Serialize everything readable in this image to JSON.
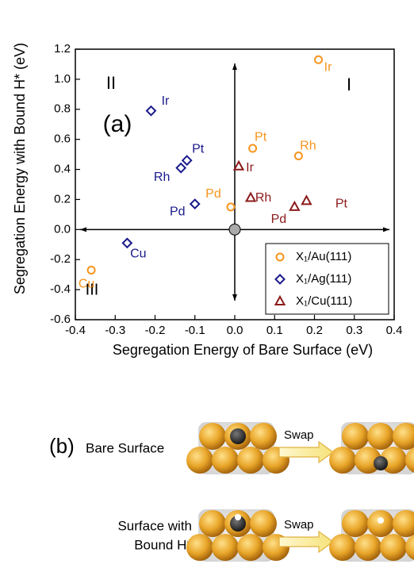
{
  "chart_data": {
    "type": "scatter",
    "x_label": "Segregation Energy of Bare Surface (eV)",
    "y_label": "Segregation Energy with Bound H* (eV)",
    "annotations": [
      "(a)",
      "I",
      "II",
      "III"
    ],
    "xlim": [
      -0.4,
      0.4
    ],
    "xticks": [
      -0.4,
      -0.3,
      -0.2,
      -0.1,
      {
        "value": 0,
        "label": "0.0"
      },
      0.1,
      0.2,
      0.3,
      0.4
    ],
    "ylim": [
      -0.6,
      1.2
    ],
    "yticks": [
      -0.6,
      -0.4,
      -0.2,
      {
        "value": 0,
        "label": "0.0"
      },
      0.2,
      0.4,
      0.6,
      0.8,
      {
        "value": 1,
        "label": "1.0"
      },
      1.2
    ],
    "legend": "bottom-right",
    "series": [
      {
        "name": "X₁/Au(111)",
        "color": "#f7941d",
        "marker": "circle",
        "labels": [
          "Ir",
          "Pt",
          "Rh",
          "Pd",
          "Cu"
        ],
        "x": [
          0.21,
          0.045,
          0.16,
          -0.01,
          -0.36
        ],
        "values": [
          1.13,
          0.54,
          0.49,
          0.15,
          -0.27
        ]
      },
      {
        "name": "X₁/Ag(111)",
        "color": "#1a1a8c",
        "marker": "diamond",
        "labels": [
          "Ir",
          "Pt",
          "Rh",
          "Pd",
          "Cu"
        ],
        "x": [
          -0.21,
          -0.12,
          -0.135,
          -0.1,
          -0.27
        ],
        "values": [
          0.79,
          0.46,
          0.41,
          0.17,
          -0.09
        ]
      },
      {
        "name": "X₁/Cu(111)",
        "color": "#8b1a1a",
        "marker": "triangle",
        "labels": [
          "Ir",
          "Rh",
          "Pd",
          "Pt"
        ],
        "x": [
          0.01,
          0.04,
          0.15,
          0.18
        ],
        "values": [
          0.42,
          0.21,
          0.15,
          0.19
        ]
      }
    ]
  },
  "panel_b": {
    "label": "(b)",
    "rows": [
      {
        "text": "Bare Surface",
        "action": "Swap"
      },
      {
        "text_lines": [
          "Surface with",
          "Bound H*"
        ],
        "action": "Swap"
      }
    ]
  }
}
